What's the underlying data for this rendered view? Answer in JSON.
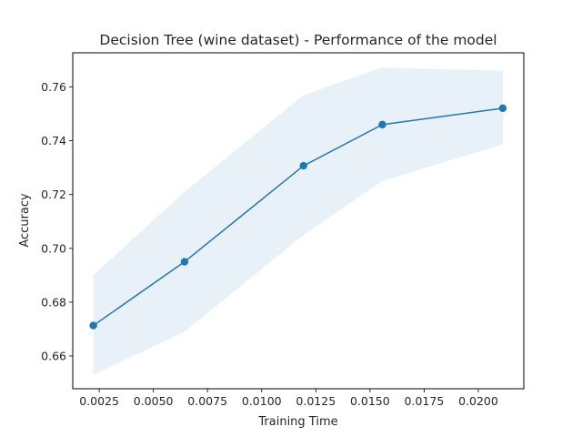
{
  "chart_data": {
    "type": "line",
    "title": "Decision Tree (wine dataset) - Performance of the model",
    "xlabel": "Training Time",
    "ylabel": "Accuracy",
    "xlim": [
      0.00128,
      0.0221
    ],
    "ylim": [
      0.6478,
      0.7727
    ],
    "xticks": [
      0.0025,
      0.005,
      0.0075,
      0.01,
      0.0125,
      0.015,
      0.0175,
      0.02
    ],
    "xtick_labels": [
      "0.0025",
      "0.0050",
      "0.0075",
      "0.0100",
      "0.0125",
      "0.0150",
      "0.0175",
      "0.0200"
    ],
    "yticks": [
      0.66,
      0.68,
      0.7,
      0.72,
      0.74,
      0.76
    ],
    "ytick_labels": [
      "0.66",
      "0.68",
      "0.70",
      "0.72",
      "0.74",
      "0.76"
    ],
    "grid": false,
    "colors": {
      "line": "#1f77b4",
      "band": "#1f77b4"
    },
    "series": [
      {
        "x": [
          0.00223,
          0.00644,
          0.01193,
          0.01557,
          0.02113
        ],
        "y": [
          0.6713,
          0.695,
          0.7307,
          0.746,
          0.7521
        ],
        "lower": [
          0.653,
          0.669,
          0.705,
          0.7251,
          0.7386
        ],
        "upper": [
          0.69,
          0.721,
          0.757,
          0.7672,
          0.766
        ]
      }
    ]
  }
}
